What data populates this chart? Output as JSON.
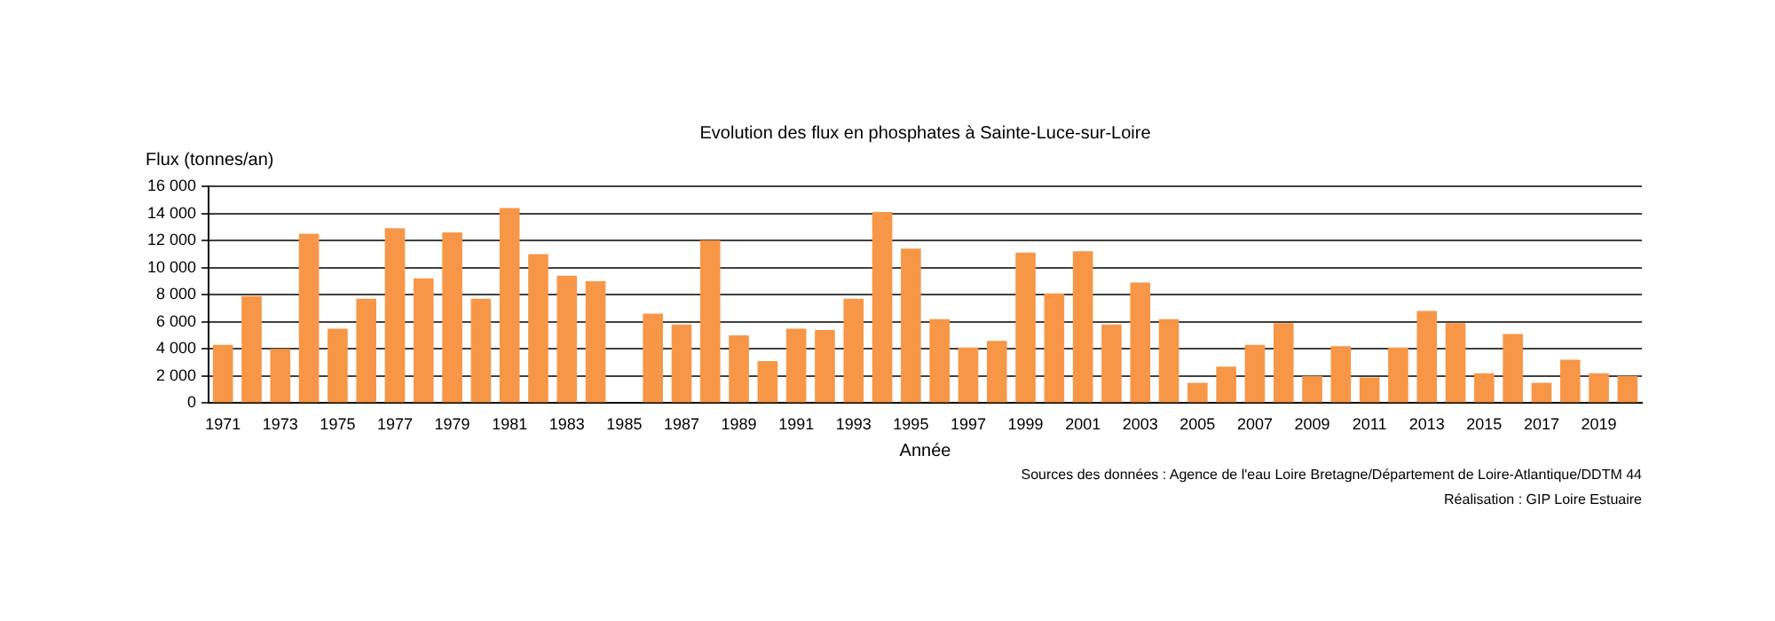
{
  "chart_data": {
    "type": "bar",
    "title": "Evolution des flux en phosphates à Sainte-Luce-sur-Loire",
    "xlabel": "Année",
    "ylabel": "Flux (tonnes/an)",
    "categories": [
      "1971",
      null,
      "1973",
      null,
      "1975",
      null,
      "1977",
      null,
      "1979",
      null,
      "1981",
      null,
      "1983",
      null,
      "1985",
      null,
      "1987",
      null,
      "1989",
      null,
      "1991",
      null,
      "1993",
      null,
      "1995",
      null,
      "1997",
      null,
      "1999",
      null,
      "2001",
      null,
      "2003",
      null,
      "2005",
      null,
      "2007",
      null,
      "2009",
      null,
      "2011",
      null,
      "2013",
      null,
      "2015",
      null,
      "2017",
      null,
      "2019",
      null
    ],
    "values": [
      4300,
      7900,
      4000,
      12500,
      5500,
      7700,
      12900,
      9200,
      12600,
      7700,
      14400,
      11000,
      9400,
      9000,
      null,
      6600,
      5800,
      12000,
      5000,
      3100,
      5500,
      5400,
      7700,
      14100,
      11400,
      6200,
      4100,
      4600,
      11100,
      8100,
      11200,
      5800,
      8900,
      6200,
      1500,
      2700,
      4300,
      5900,
      2000,
      4200,
      1900,
      4100,
      6800,
      5900,
      2200,
      5100,
      1500,
      3200,
      2200,
      2000
    ],
    "color": "#f79646",
    "ylim": [
      0,
      16000
    ],
    "yticks": [
      {
        "value": 0,
        "label": "0"
      },
      {
        "value": 2000,
        "label": "2 000"
      },
      {
        "value": 4000,
        "label": "4 000"
      },
      {
        "value": 6000,
        "label": "6 000"
      },
      {
        "value": 8000,
        "label": "8 000"
      },
      {
        "value": 10000,
        "label": "10 000"
      },
      {
        "value": 12000,
        "label": "12 000"
      },
      {
        "value": 14000,
        "label": "14 000"
      },
      {
        "value": 16000,
        "label": "16 000"
      }
    ],
    "grid": "y",
    "legend": false,
    "annotations": [
      "Sources des données : Agence de l'eau Loire Bretagne/Département de Loire-Atlantique/DDTM 44",
      "Réalisation : GIP Loire Estuaire"
    ]
  }
}
